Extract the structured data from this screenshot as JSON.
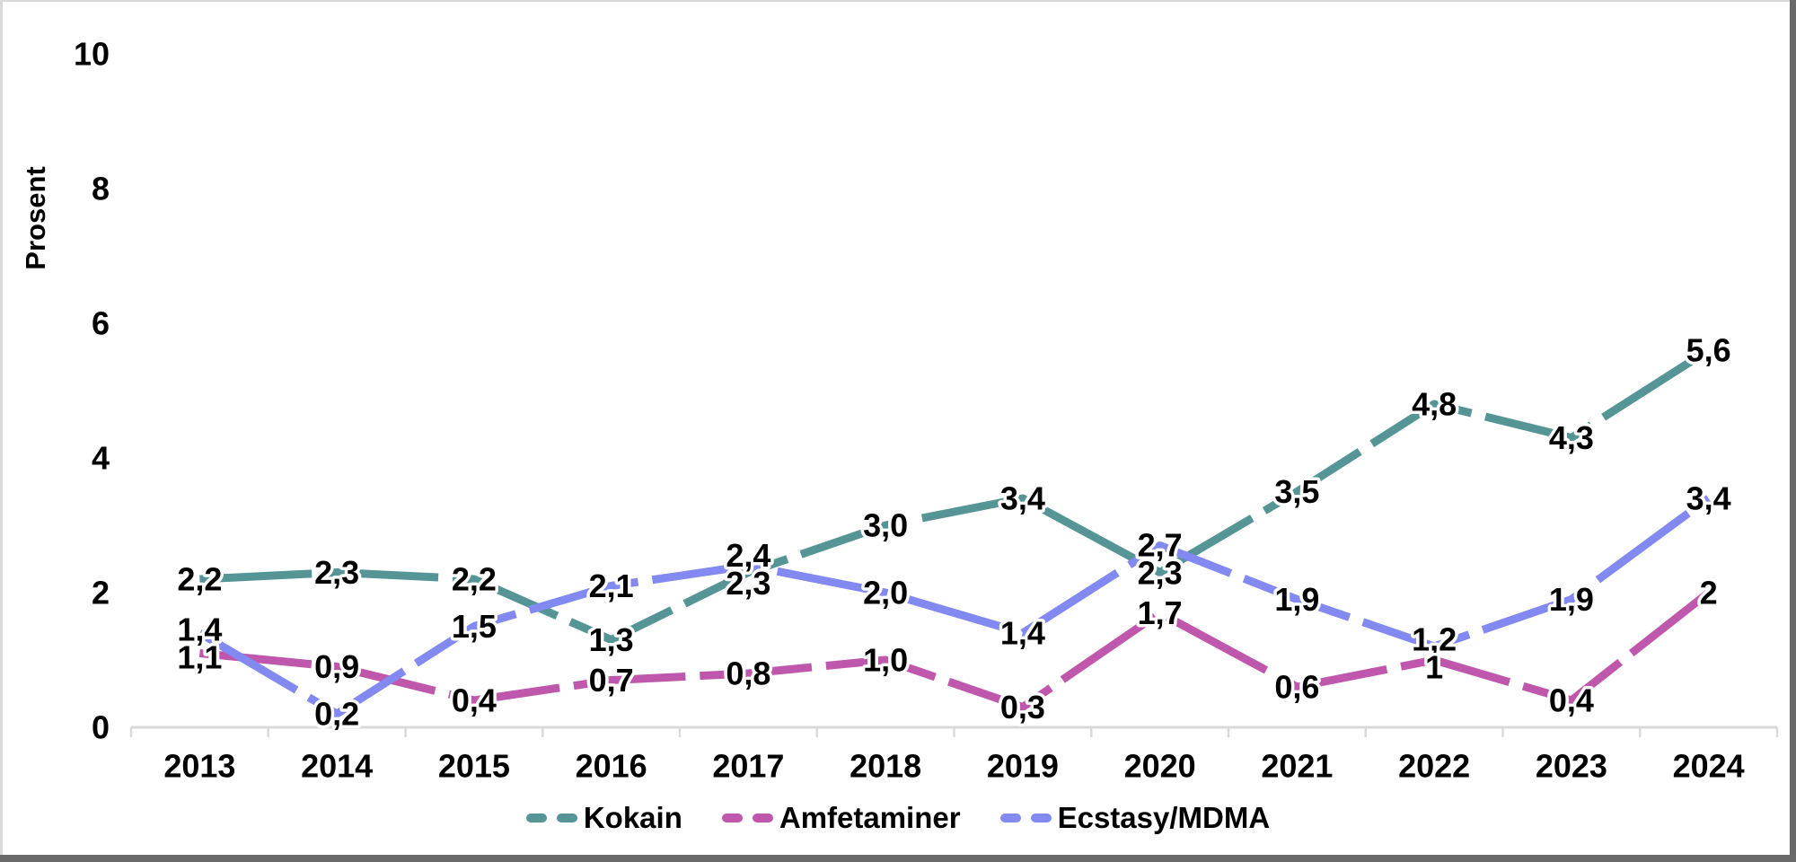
{
  "chart_data": {
    "type": "line",
    "title": "",
    "ylabel": "Prosent",
    "xlabel": "",
    "ylim": [
      0,
      10
    ],
    "yticks": [
      0,
      2,
      4,
      6,
      8,
      10
    ],
    "grid": false,
    "line_style": "dashed",
    "legend_position": "bottom",
    "categories": [
      "2013",
      "2014",
      "2015",
      "2016",
      "2017",
      "2018",
      "2019",
      "2020",
      "2021",
      "2022",
      "2023",
      "2024"
    ],
    "series": [
      {
        "name": "Kokain",
        "color": "#559595",
        "values": [
          2.2,
          2.3,
          2.2,
          1.3,
          2.3,
          3.0,
          3.4,
          2.3,
          3.5,
          4.8,
          4.3,
          5.6
        ],
        "labels": [
          "2,2",
          "2,3",
          "2,2",
          "1,3",
          "2,3",
          "3,0",
          "3,4",
          "2,3",
          "3,5",
          "4,8",
          "4,3",
          "5,6"
        ]
      },
      {
        "name": "Amfetaminer",
        "color": "#bf58ad",
        "values": [
          1.1,
          0.9,
          0.4,
          0.7,
          0.8,
          1.0,
          0.3,
          1.7,
          0.6,
          1.0,
          0.4,
          2.0
        ],
        "labels": [
          "1,1",
          "0,9",
          "0,4",
          "0,7",
          "0,8",
          "1,0",
          "0,3",
          "1,7",
          "0,6",
          "1",
          "0,4",
          "2"
        ]
      },
      {
        "name": "Ecstasy/MDMA",
        "color": "#8289f1",
        "values": [
          1.4,
          0.2,
          1.5,
          2.1,
          2.4,
          2.0,
          1.4,
          2.7,
          1.9,
          1.2,
          1.9,
          3.4
        ],
        "labels": [
          "1,4",
          "0,2",
          "1,5",
          "2,1",
          "2,4",
          "2,0",
          "1,4",
          "2,7",
          "1,9",
          "1,2",
          "1,9",
          "3,4"
        ]
      }
    ]
  },
  "colors": {
    "axis": "#d9d9d9",
    "label_text": "#000000",
    "frame_light": "#d9d9d9",
    "frame_dark": "#696969",
    "background": "#ffffff"
  }
}
